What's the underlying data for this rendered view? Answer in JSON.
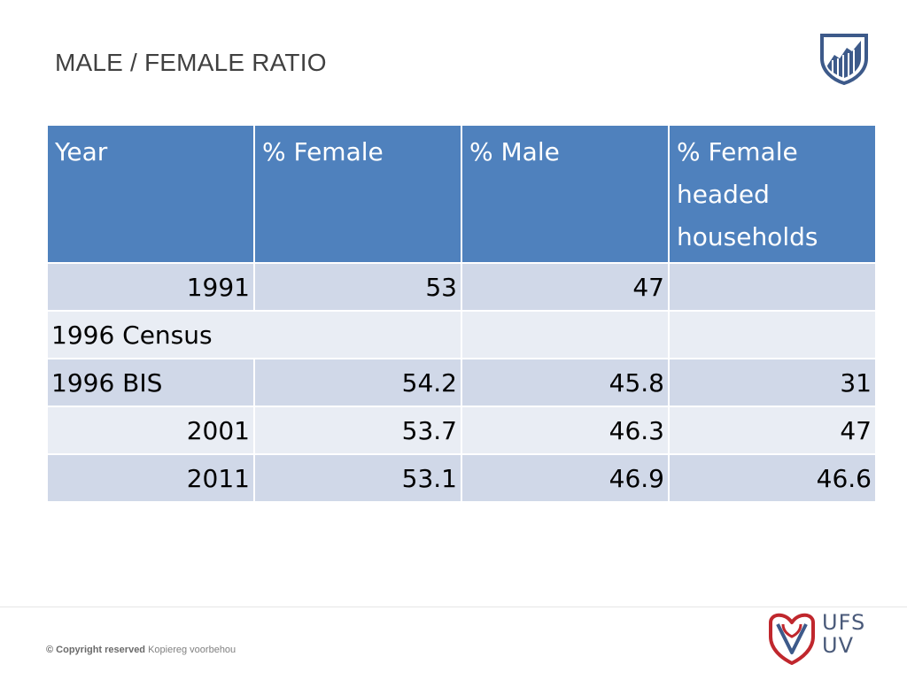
{
  "title": "MALE / FEMALE RATIO",
  "table": {
    "headers": [
      "Year",
      "% Female",
      "% Male",
      "% Female headed households"
    ],
    "rows": [
      {
        "year": "1991",
        "female": "53",
        "male": "47",
        "fhh": ""
      },
      {
        "year": "1996 Census",
        "female": "",
        "male": "",
        "fhh": ""
      },
      {
        "year": "1996 BIS",
        "female": "54.2",
        "male": "45.8",
        "fhh": "31"
      },
      {
        "year": "2001",
        "female": "53.7",
        "male": "46.3",
        "fhh": "47"
      },
      {
        "year": "2011",
        "female": "53.1",
        "male": "46.9",
        "fhh": "46.6"
      }
    ]
  },
  "footer": {
    "copyright_bold": "© Copyright reserved",
    "copyright_rest": "Kopiereg voorbehou",
    "logo_line1": "UFS",
    "logo_line2": "UV"
  },
  "colors": {
    "header_bg": "#4f81bd",
    "row_dark": "#d0d8e8",
    "row_light": "#e9edf4",
    "logo_red": "#c0272d",
    "logo_blue": "#3d5a8a"
  }
}
